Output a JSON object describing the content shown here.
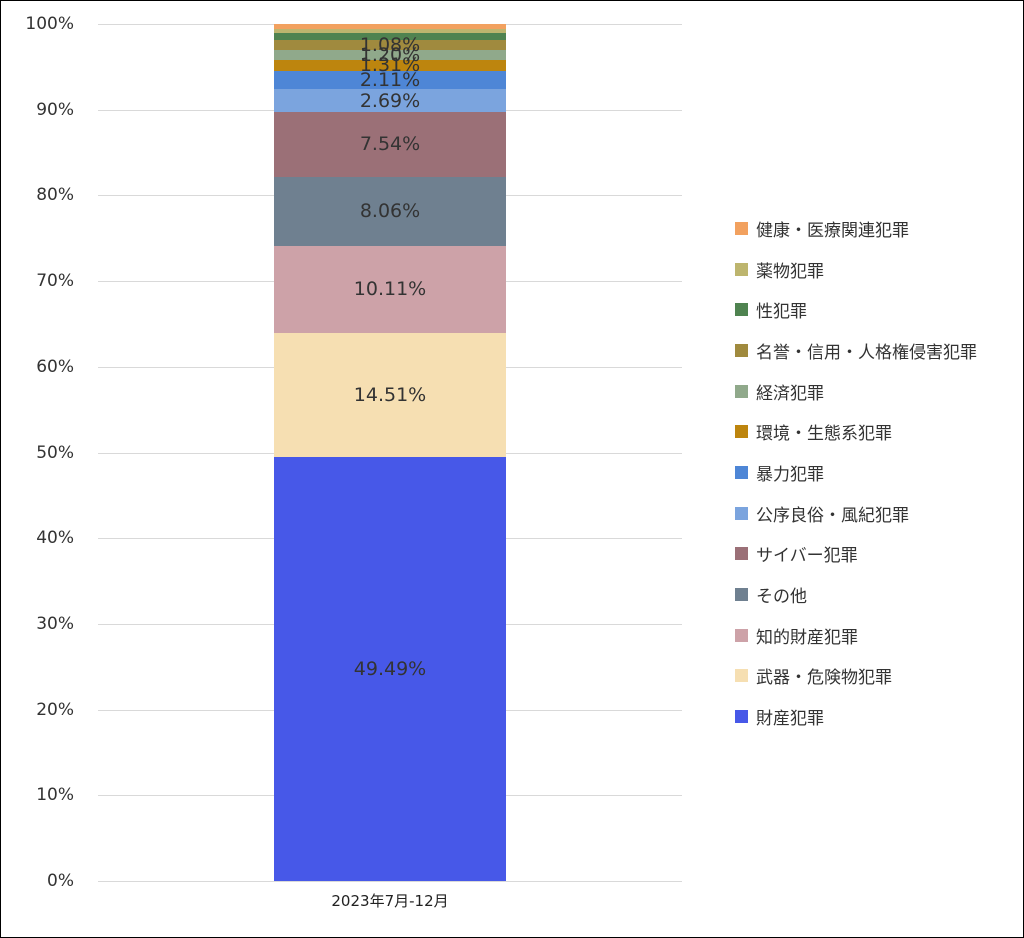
{
  "chart_data": {
    "type": "bar",
    "stacked": true,
    "percent": true,
    "title": "",
    "xlabel": "",
    "ylabel": "",
    "ylim": [
      0,
      100
    ],
    "yticks": [
      "0%",
      "10%",
      "20%",
      "30%",
      "40%",
      "50%",
      "60%",
      "70%",
      "80%",
      "90%",
      "100%"
    ],
    "categories": [
      "2023年7月-12月"
    ],
    "legend_position": "right",
    "grid": true,
    "series": [
      {
        "name": "財産犯罪",
        "values": [
          49.49
        ],
        "color": "#4758E8",
        "label": "49.49%"
      },
      {
        "name": "武器・危険物犯罪",
        "values": [
          14.51
        ],
        "color": "#F6DFB2",
        "label": "14.51%"
      },
      {
        "name": "知的財産犯罪",
        "values": [
          10.11
        ],
        "color": "#CDA2A8",
        "label": "10.11%"
      },
      {
        "name": "その他",
        "values": [
          8.06
        ],
        "color": "#6F8090",
        "label": "8.06%"
      },
      {
        "name": "サイバー犯罪",
        "values": [
          7.54
        ],
        "color": "#9B7077",
        "label": "7.54%"
      },
      {
        "name": "公序良俗・風紀犯罪",
        "values": [
          2.69
        ],
        "color": "#7BA4DE",
        "label": "2.69%"
      },
      {
        "name": "暴力犯罪",
        "values": [
          2.11
        ],
        "color": "#4E86D6",
        "label": "2.11%"
      },
      {
        "name": "環境・生態系犯罪",
        "values": [
          1.31
        ],
        "color": "#BD850E",
        "label": "1.31%"
      },
      {
        "name": "経済犯罪",
        "values": [
          1.2
        ],
        "color": "#90A98B",
        "label": "1.20%"
      },
      {
        "name": "名誉・信用・人格権侵害犯罪",
        "values": [
          1.08
        ],
        "color": "#A08A3E",
        "label": "1.08%"
      },
      {
        "name": "性犯罪",
        "values": [
          0.8
        ],
        "color": "#4F8350",
        "label": ""
      },
      {
        "name": "薬物犯罪",
        "values": [
          0.55
        ],
        "color": "#BDB56E",
        "label": ""
      },
      {
        "name": "健康・医療関連犯罪",
        "values": [
          0.55
        ],
        "color": "#F2A15F",
        "label": ""
      }
    ]
  },
  "legend": [
    {
      "label": "健康・医療関連犯罪",
      "color": "#F2A15F"
    },
    {
      "label": "薬物犯罪",
      "color": "#BDB56E"
    },
    {
      "label": "性犯罪",
      "color": "#4F8350"
    },
    {
      "label": "名誉・信用・人格権侵害犯罪",
      "color": "#A08A3E"
    },
    {
      "label": "経済犯罪",
      "color": "#90A98B"
    },
    {
      "label": "環境・生態系犯罪",
      "color": "#BD850E"
    },
    {
      "label": "暴力犯罪",
      "color": "#4E86D6"
    },
    {
      "label": "公序良俗・風紀犯罪",
      "color": "#7BA4DE"
    },
    {
      "label": "サイバー犯罪",
      "color": "#9B7077"
    },
    {
      "label": "その他",
      "color": "#6F8090"
    },
    {
      "label": "知的財産犯罪",
      "color": "#CDA2A8"
    },
    {
      "label": "武器・危険物犯罪",
      "color": "#F6DFB2"
    },
    {
      "label": "財産犯罪",
      "color": "#4758E8"
    }
  ]
}
